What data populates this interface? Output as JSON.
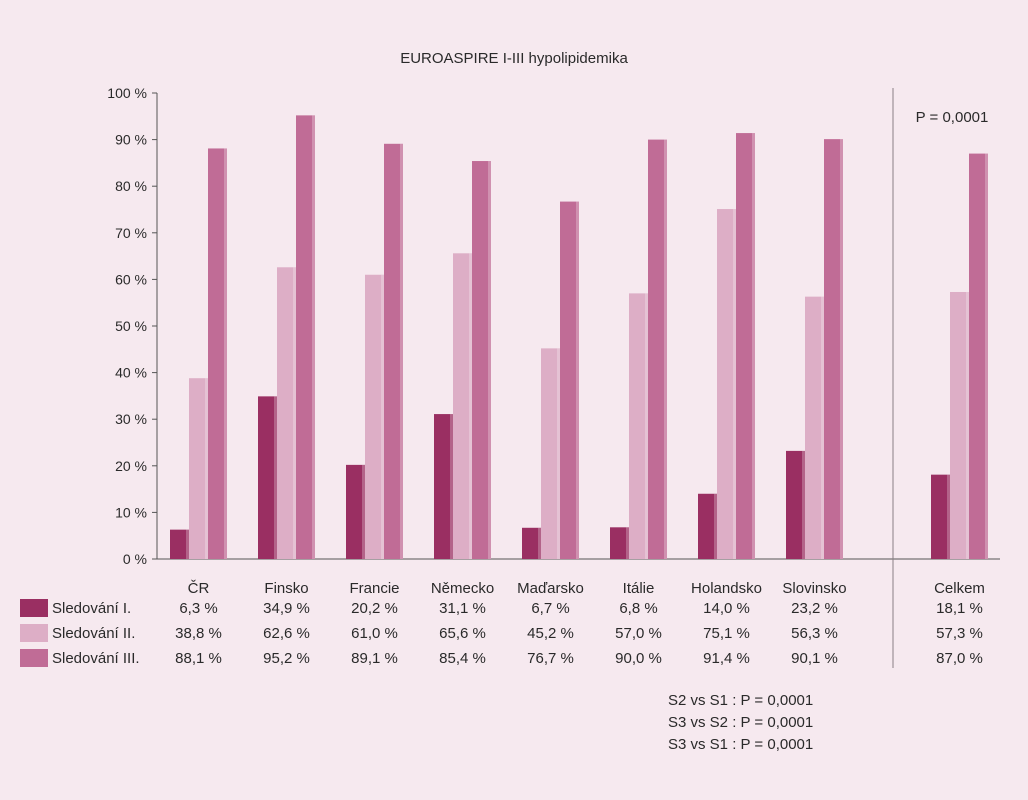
{
  "chart_data": {
    "type": "bar",
    "title": "EUROASPIRE I-III hypolipidemika",
    "categories": [
      "ČR",
      "Finsko",
      "Francie",
      "Německo",
      "Maďarsko",
      "Itálie",
      "Holandsko",
      "Slovinsko",
      "Celkem"
    ],
    "series": [
      {
        "name": "Sledování I.",
        "values": [
          6.3,
          34.9,
          20.2,
          31.1,
          6.7,
          6.8,
          14.0,
          23.2,
          18.1
        ],
        "labels": [
          "6,3 %",
          "34,9 %",
          "20,2 %",
          "31,1 %",
          "6,7 %",
          "6,8 %",
          "14,0 %",
          "23,2 %",
          "18,1 %"
        ]
      },
      {
        "name": "Sledování II.",
        "values": [
          38.8,
          62.6,
          61.0,
          65.6,
          45.2,
          57.0,
          75.1,
          56.3,
          57.3
        ],
        "labels": [
          "38,8 %",
          "62,6 %",
          "61,0 %",
          "65,6 %",
          "45,2 %",
          "57,0 %",
          "75,1 %",
          "56,3 %",
          "57,3 %"
        ]
      },
      {
        "name": "Sledování III.",
        "values": [
          88.1,
          95.2,
          89.1,
          85.4,
          76.7,
          90.0,
          91.4,
          90.1,
          87.0
        ],
        "labels": [
          "88,1 %",
          "95,2 %",
          "89,1 %",
          "85,4 %",
          "76,7 %",
          "90,0 %",
          "91,4 %",
          "90,1 %",
          "87,0 %"
        ]
      }
    ],
    "ylim": [
      0,
      100
    ],
    "yticks": [
      "0 %",
      "10 %",
      "20 %",
      "30 %",
      "40 %",
      "50 %",
      "60 %",
      "70 %",
      "80 %",
      "90 %",
      "100 %"
    ],
    "colors": [
      "#9a2f62",
      "#ddaec6",
      "#c06c96"
    ],
    "annotations": {
      "p_total": "P = 0,0001",
      "comparisons": [
        "S2 vs S1 : P = 0,0001",
        "S3 vs S2 : P = 0,0001",
        "S3 vs S1 : P = 0,0001"
      ]
    },
    "grid": false,
    "legend": "table-below"
  }
}
